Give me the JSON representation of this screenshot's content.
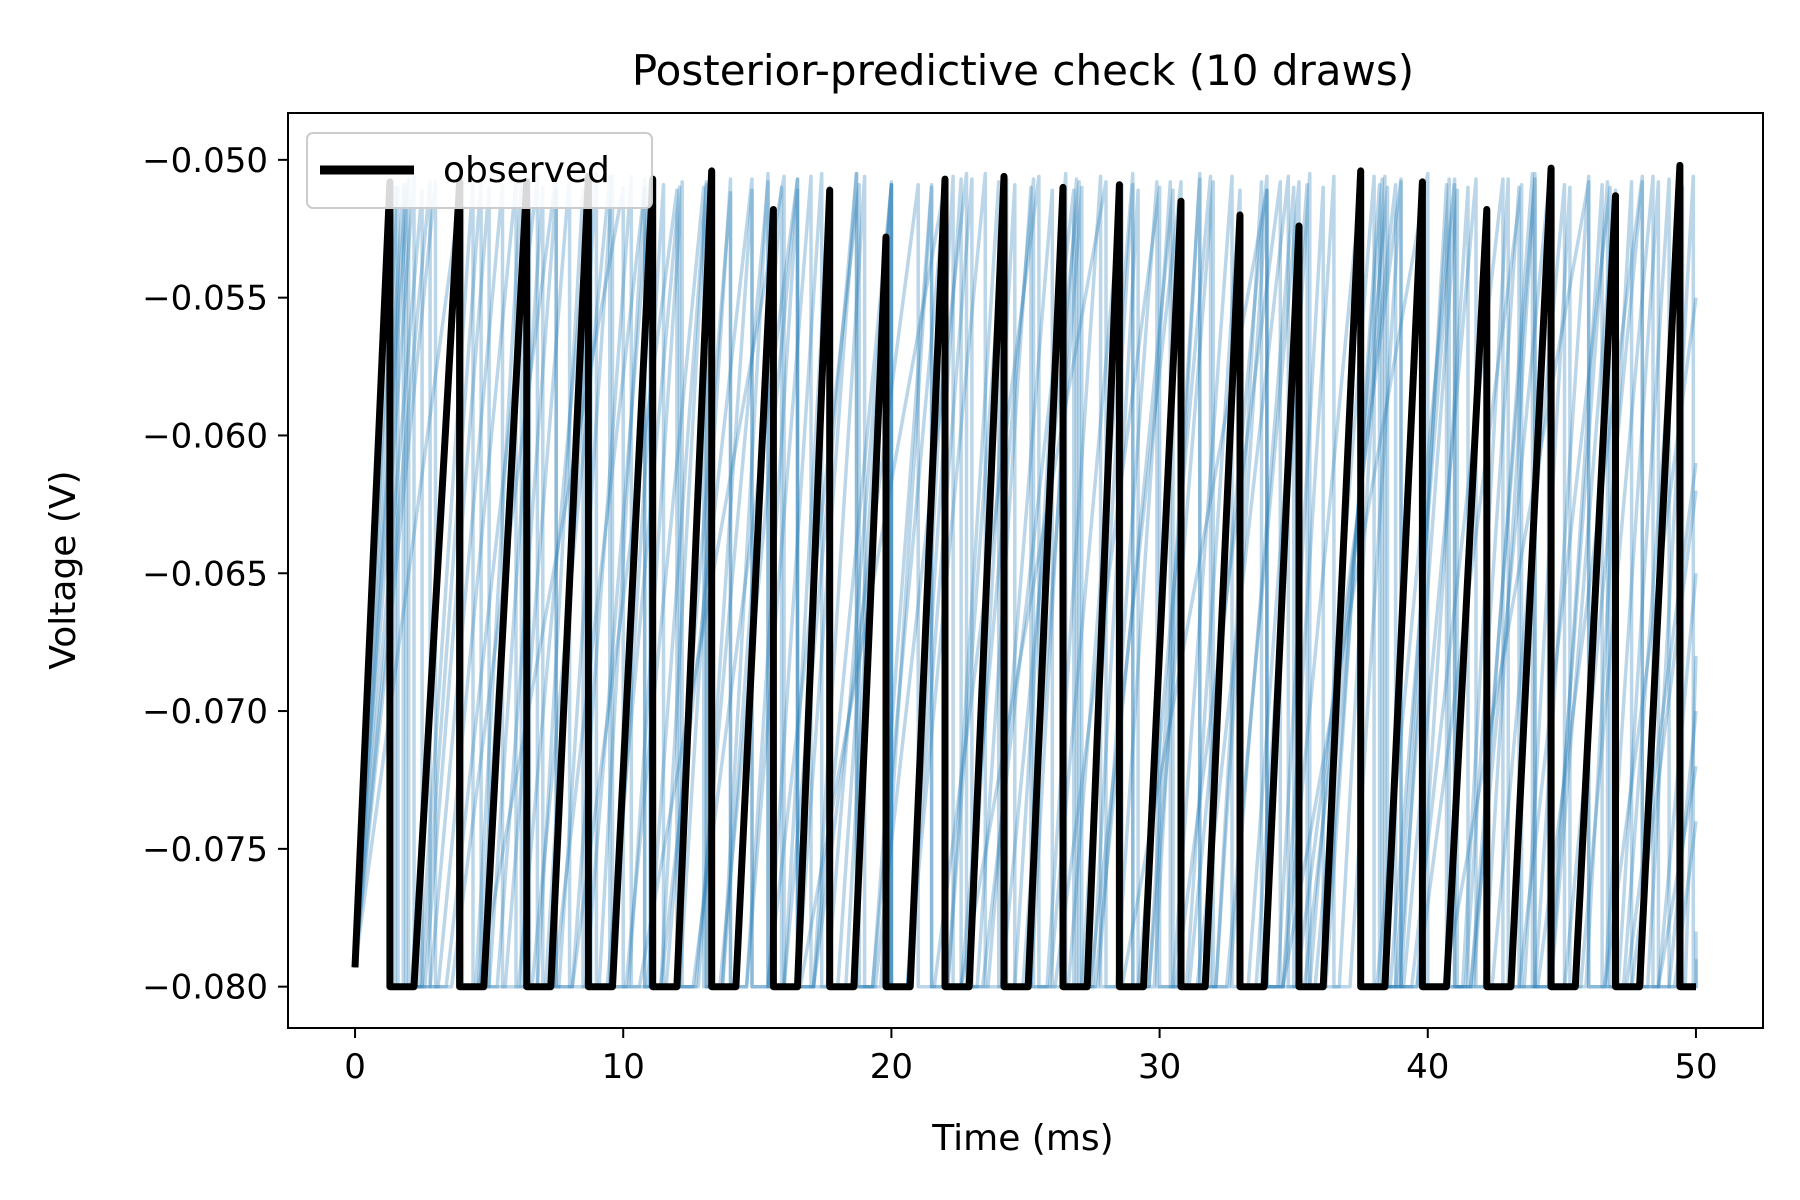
{
  "chart_data": {
    "type": "line",
    "title": "Posterior-predictive check (10 draws)",
    "xlabel": "Time (ms)",
    "ylabel": "Voltage (V)",
    "xlim": [
      -2.5,
      52.5
    ],
    "ylim": [
      -0.0815,
      -0.0483
    ],
    "xticks": [
      0,
      10,
      20,
      30,
      40,
      50
    ],
    "yticks": [
      -0.05,
      -0.055,
      -0.06,
      -0.065,
      -0.07,
      -0.075,
      -0.08
    ],
    "xtick_labels": [
      "0",
      "10",
      "20",
      "30",
      "40",
      "50"
    ],
    "ytick_labels": [
      "−0.050",
      "−0.055",
      "−0.060",
      "−0.065",
      "−0.070",
      "−0.075",
      "−0.080"
    ],
    "legend": {
      "position": "top-left",
      "entries": [
        "observed"
      ]
    },
    "grid": false,
    "reset_voltage": -0.08,
    "start_voltage": -0.0793,
    "t_end": 50,
    "colors": {
      "observed": "#000000",
      "draws": "#1f77b4"
    },
    "series": [
      {
        "name": "observed",
        "spike_times": [
          1.3,
          3.9,
          6.4,
          8.7,
          11.1,
          13.3,
          15.6,
          17.7,
          19.8,
          22.0,
          24.2,
          26.4,
          28.5,
          30.8,
          33.0,
          35.2,
          37.5,
          39.8,
          42.2,
          44.6,
          47.0,
          49.4
        ],
        "spike_peaks": [
          -0.0508,
          -0.0508,
          -0.0508,
          -0.0506,
          -0.0507,
          -0.0504,
          -0.0518,
          -0.0511,
          -0.0528,
          -0.0507,
          -0.0506,
          -0.051,
          -0.0509,
          -0.0515,
          -0.052,
          -0.0524,
          -0.0504,
          -0.0508,
          -0.0518,
          -0.0503,
          -0.0513,
          -0.0502
        ]
      }
    ],
    "draws": [
      {
        "spike_times": [
          1.5,
          4.0,
          6.5,
          9.0,
          11.5,
          14.0,
          16.5,
          19.0,
          21.5,
          24.0,
          26.5,
          29.0,
          31.5,
          34.0,
          36.5,
          39.0,
          41.5,
          44.0,
          46.5,
          49.0
        ],
        "spike_peaks": [
          -0.051,
          -0.0508,
          -0.0512,
          -0.0505,
          -0.0509,
          -0.0507,
          -0.0511,
          -0.0506,
          -0.051,
          -0.0508,
          -0.0505,
          -0.0509,
          -0.0507,
          -0.0511,
          -0.0506,
          -0.0508,
          -0.051,
          -0.0505,
          -0.0509,
          -0.0507
        ],
        "end_voltage": -0.068
      },
      {
        "spike_times": [
          2.0,
          5.0,
          8.0,
          11.0,
          14.0,
          17.0,
          20.0,
          23.0,
          26.0,
          29.0,
          32.0,
          35.0,
          38.0,
          41.0,
          44.0,
          47.0
        ],
        "spike_peaks": [
          -0.0507,
          -0.051,
          -0.0505,
          -0.0508,
          -0.0512,
          -0.0506,
          -0.0509,
          -0.0507,
          -0.0511,
          -0.0505,
          -0.0508,
          -0.051,
          -0.0506,
          -0.0509,
          -0.0507,
          -0.0511
        ],
        "end_voltage": -0.062
      },
      {
        "spike_times": [
          2.5,
          6.0,
          9.5,
          13.0,
          16.5,
          20.0,
          23.5,
          27.0,
          30.5,
          34.0,
          37.5,
          41.0,
          44.5,
          48.0
        ],
        "spike_peaks": [
          -0.0511,
          -0.0508,
          -0.0506,
          -0.051,
          -0.0507,
          -0.0509,
          -0.0505,
          -0.0508,
          -0.0511,
          -0.0506,
          -0.0509,
          -0.0507,
          -0.051,
          -0.0508
        ],
        "end_voltage": -0.072
      },
      {
        "spike_times": [
          1.8,
          4.4,
          7.0,
          9.6,
          12.2,
          14.8,
          17.4,
          20.0,
          22.6,
          25.2,
          27.8,
          30.4,
          33.0,
          35.6,
          38.2,
          40.8,
          43.4,
          46.0,
          48.6
        ],
        "spike_peaks": [
          -0.0509,
          -0.0507,
          -0.051,
          -0.0506,
          -0.0508,
          -0.0511,
          -0.0505,
          -0.0509,
          -0.0507,
          -0.051,
          -0.0506,
          -0.0508,
          -0.0511,
          -0.0505,
          -0.0509,
          -0.0507,
          -0.051,
          -0.0506,
          -0.0508
        ],
        "end_voltage": -0.074
      },
      {
        "spike_times": [
          3.0,
          7.5,
          12.0,
          16.5,
          21.0,
          25.5,
          30.0,
          34.5,
          39.0,
          43.5,
          48.0
        ],
        "spike_peaks": [
          -0.0508,
          -0.0505,
          -0.0511,
          -0.0507,
          -0.0509,
          -0.0506,
          -0.051,
          -0.0508,
          -0.0507,
          -0.0509,
          -0.0506
        ],
        "end_voltage": -0.065
      },
      {
        "spike_times": [
          1.6,
          3.9,
          6.2,
          8.5,
          10.8,
          13.1,
          15.4,
          17.7,
          20.0,
          22.3,
          24.6,
          26.9,
          29.2,
          31.5,
          33.8,
          36.1,
          38.4,
          40.7,
          43.0,
          45.3,
          47.6,
          49.9
        ],
        "spike_peaks": [
          -0.051,
          -0.0506,
          -0.0508,
          -0.0511,
          -0.0507,
          -0.0509,
          -0.0505,
          -0.051,
          -0.0508,
          -0.0506,
          -0.0509,
          -0.0507,
          -0.0511,
          -0.0505,
          -0.0508,
          -0.051,
          -0.0506,
          -0.0509,
          -0.0507,
          -0.051,
          -0.0508,
          -0.0506
        ],
        "end_voltage": -0.079
      },
      {
        "spike_times": [
          2.2,
          5.5,
          8.8,
          12.1,
          15.4,
          18.7,
          22.0,
          25.3,
          28.6,
          31.9,
          35.2,
          38.5,
          41.8,
          45.1,
          48.4
        ],
        "spike_peaks": [
          -0.0506,
          -0.0509,
          -0.0507,
          -0.051,
          -0.0508,
          -0.0505,
          -0.0511,
          -0.0507,
          -0.0509,
          -0.0506,
          -0.0508,
          -0.051,
          -0.0507,
          -0.0509,
          -0.0506
        ],
        "end_voltage": -0.07
      },
      {
        "spike_times": [
          4.0,
          10.0,
          16.0,
          22.0,
          28.0,
          34.0,
          40.0,
          46.0
        ],
        "spike_peaks": [
          -0.0507,
          -0.051,
          -0.0506,
          -0.0509,
          -0.0508,
          -0.0511,
          -0.0505,
          -0.0508
        ],
        "end_voltage": -0.055
      },
      {
        "spike_times": [
          1.9,
          4.7,
          7.5,
          10.3,
          13.1,
          15.9,
          18.7,
          21.5,
          24.3,
          27.1,
          29.9,
          32.7,
          35.5,
          38.3,
          41.1,
          43.9,
          46.7,
          49.5
        ],
        "spike_peaks": [
          -0.0509,
          -0.0507,
          -0.0511,
          -0.0506,
          -0.0508,
          -0.051,
          -0.0505,
          -0.0509,
          -0.0507,
          -0.051,
          -0.0508,
          -0.0506,
          -0.0509,
          -0.0507,
          -0.0511,
          -0.0505,
          -0.0508,
          -0.051
        ],
        "end_voltage": -0.078
      },
      {
        "spike_times": [
          2.8,
          6.8,
          10.8,
          14.8,
          18.8,
          22.8,
          26.8,
          30.8,
          34.8,
          38.8,
          42.8,
          46.8
        ],
        "spike_peaks": [
          -0.0508,
          -0.0506,
          -0.051,
          -0.0507,
          -0.0509,
          -0.0505,
          -0.0511,
          -0.0508,
          -0.0506,
          -0.0509,
          -0.0507,
          -0.051
        ],
        "end_voltage": -0.061
      }
    ]
  }
}
